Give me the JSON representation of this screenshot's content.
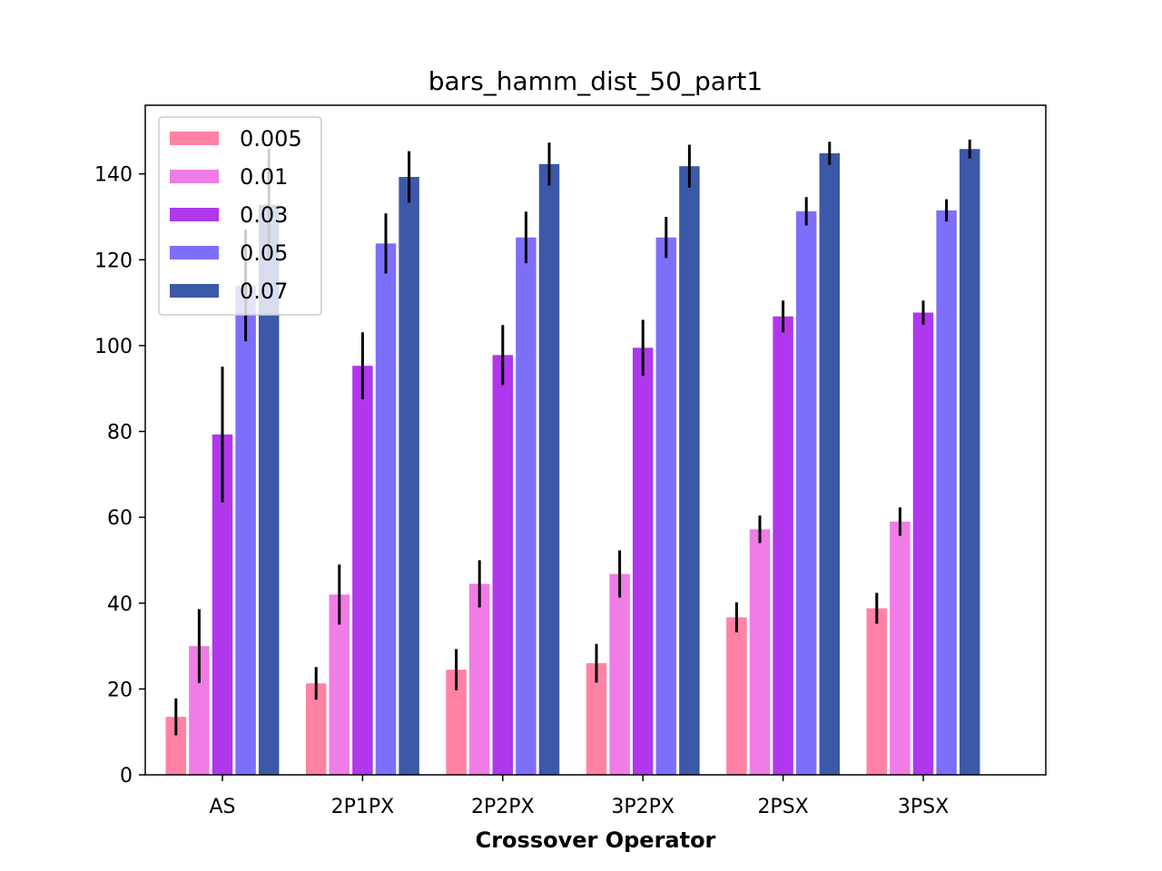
{
  "chart_data": {
    "type": "bar",
    "title": "bars_hamm_dist_50_part1",
    "xlabel": "Crossover Operator",
    "ylabel": "",
    "ylim": [
      0,
      156
    ],
    "yticks": [
      0,
      20,
      40,
      60,
      80,
      100,
      120,
      140
    ],
    "categories": [
      "AS",
      "2P1PX",
      "2P2PX",
      "3P2PX",
      "2PSX",
      "3PSX"
    ],
    "legend_position": "top-left",
    "grid": false,
    "series": [
      {
        "name": "0.005",
        "color": "#ff82a5",
        "values": [
          13.5,
          21.3,
          24.5,
          26.0,
          36.7,
          38.8
        ],
        "errors": [
          4.3,
          3.8,
          4.8,
          4.5,
          3.5,
          3.6
        ]
      },
      {
        "name": "0.01",
        "color": "#f07de6",
        "values": [
          30.0,
          42.0,
          44.5,
          46.8,
          57.2,
          59.0
        ],
        "errors": [
          8.6,
          7.0,
          5.5,
          5.5,
          3.2,
          3.3
        ]
      },
      {
        "name": "0.03",
        "color": "#b037eb",
        "values": [
          79.3,
          95.3,
          97.8,
          99.5,
          106.8,
          107.7
        ],
        "errors": [
          15.8,
          7.8,
          7.0,
          6.5,
          3.7,
          2.8
        ]
      },
      {
        "name": "0.05",
        "color": "#7e6ffb",
        "values": [
          114.0,
          123.8,
          125.2,
          125.2,
          131.3,
          131.5
        ],
        "errors": [
          13.0,
          7.0,
          6.0,
          4.8,
          3.3,
          2.6
        ]
      },
      {
        "name": "0.07",
        "color": "#3c58a8",
        "values": [
          132.8,
          139.3,
          142.3,
          141.8,
          144.8,
          145.8
        ],
        "errors": [
          13.0,
          6.0,
          5.0,
          5.0,
          2.7,
          2.2
        ]
      }
    ]
  }
}
